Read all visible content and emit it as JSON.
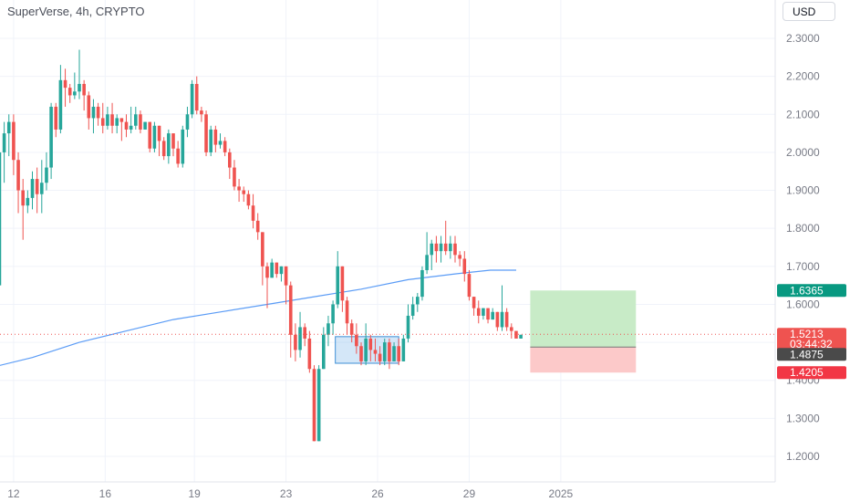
{
  "header": {
    "title": "SuperVerse, 4h, CRYPTO",
    "currency": "USD"
  },
  "colors": {
    "up": "#26a69a",
    "down": "#ef5350",
    "ma": "#5b9cf6",
    "target_zone": "#c8ebc7",
    "stop_zone": "#fcc9c9",
    "target_tag": "#089981",
    "stop_tag": "#f23645",
    "price_tag": "#ef5350",
    "entry_tag": "#4a4a4a"
  },
  "chart_data": {
    "type": "candlestick",
    "title": "SuperVerse, 4h, CRYPTO",
    "y_ticks": [
      "2.3000",
      "2.2000",
      "2.1000",
      "2.0000",
      "1.9000",
      "1.8000",
      "1.7000",
      "1.6000",
      "1.5000",
      "1.4000",
      "1.3000",
      "1.2000"
    ],
    "ylim": [
      1.17,
      2.34
    ],
    "x_ticks": [
      "12",
      "16",
      "19",
      "23",
      "26",
      "29",
      "2025"
    ],
    "x_tick_index": [
      12,
      51,
      89,
      128,
      167,
      206,
      245
    ],
    "candles": [
      [
        1.65,
        2.0,
        1.64,
        2.03
      ],
      [
        2.0,
        2.05,
        1.92,
        2.08
      ],
      [
        2.05,
        2.08,
        1.99,
        2.1
      ],
      [
        2.08,
        1.98,
        1.94,
        2.1
      ],
      [
        1.98,
        1.9,
        1.84,
        2.0
      ],
      [
        1.9,
        1.86,
        1.77,
        1.93
      ],
      [
        1.86,
        1.88,
        1.84,
        1.9
      ],
      [
        1.88,
        1.93,
        1.85,
        1.95
      ],
      [
        1.93,
        1.89,
        1.84,
        1.96
      ],
      [
        1.89,
        1.92,
        1.84,
        1.98
      ],
      [
        1.92,
        1.96,
        1.9,
        2.0
      ],
      [
        1.96,
        2.12,
        1.93,
        2.13
      ],
      [
        2.12,
        2.06,
        2.04,
        2.13
      ],
      [
        2.06,
        2.19,
        2.05,
        2.23
      ],
      [
        2.19,
        2.17,
        2.12,
        2.22
      ],
      [
        2.17,
        2.15,
        2.13,
        2.18
      ],
      [
        2.15,
        2.16,
        2.14,
        2.21
      ],
      [
        2.16,
        2.18,
        2.14,
        2.27
      ],
      [
        2.18,
        2.15,
        2.11,
        2.19
      ],
      [
        2.15,
        2.09,
        2.06,
        2.16
      ],
      [
        2.09,
        2.12,
        2.05,
        2.14
      ],
      [
        2.12,
        2.09,
        2.07,
        2.13
      ],
      [
        2.09,
        2.07,
        2.05,
        2.13
      ],
      [
        2.07,
        2.1,
        2.06,
        2.12
      ],
      [
        2.1,
        2.07,
        2.05,
        2.13
      ],
      [
        2.07,
        2.09,
        2.05,
        2.1
      ],
      [
        2.09,
        2.08,
        2.03,
        2.09
      ],
      [
        2.08,
        2.06,
        2.04,
        2.1
      ],
      [
        2.06,
        2.07,
        2.05,
        2.12
      ],
      [
        2.07,
        2.1,
        2.06,
        2.12
      ],
      [
        2.1,
        2.06,
        2.05,
        2.11
      ],
      [
        2.06,
        2.08,
        2.06,
        2.08
      ],
      [
        2.08,
        2.01,
        2.0,
        2.08
      ],
      [
        2.01,
        2.07,
        2.0,
        2.08
      ],
      [
        2.07,
        2.03,
        1.99,
        2.07
      ],
      [
        2.03,
        1.99,
        1.98,
        2.04
      ],
      [
        1.99,
        2.05,
        1.97,
        2.06
      ],
      [
        2.05,
        2.01,
        1.99,
        2.05
      ],
      [
        2.01,
        1.97,
        1.96,
        2.03
      ],
      [
        1.97,
        2.06,
        1.96,
        2.07
      ],
      [
        2.06,
        2.1,
        2.04,
        2.12
      ],
      [
        2.1,
        2.18,
        2.09,
        2.19
      ],
      [
        2.18,
        2.11,
        2.1,
        2.2
      ],
      [
        2.11,
        2.1,
        2.08,
        2.12
      ],
      [
        2.1,
        2.0,
        1.99,
        2.11
      ],
      [
        2.0,
        2.06,
        1.99,
        2.07
      ],
      [
        2.06,
        2.02,
        2.0,
        2.07
      ],
      [
        2.02,
        2.03,
        2.01,
        2.05
      ],
      [
        2.03,
        2.0,
        1.99,
        2.04
      ],
      [
        2.0,
        1.96,
        1.93,
        2.01
      ],
      [
        1.96,
        1.91,
        1.9,
        1.98
      ],
      [
        1.91,
        1.9,
        1.87,
        1.93
      ],
      [
        1.9,
        1.89,
        1.87,
        1.91
      ],
      [
        1.89,
        1.86,
        1.85,
        1.9
      ],
      [
        1.86,
        1.82,
        1.8,
        1.89
      ],
      [
        1.82,
        1.79,
        1.77,
        1.84
      ],
      [
        1.79,
        1.7,
        1.65,
        1.79
      ],
      [
        1.7,
        1.67,
        1.59,
        1.71
      ],
      [
        1.67,
        1.71,
        1.67,
        1.72
      ],
      [
        1.71,
        1.68,
        1.67,
        1.71
      ],
      [
        1.68,
        1.7,
        1.66,
        1.7
      ],
      [
        1.7,
        1.65,
        1.6,
        1.7
      ],
      [
        1.65,
        1.52,
        1.46,
        1.66
      ],
      [
        1.52,
        1.48,
        1.45,
        1.55
      ],
      [
        1.48,
        1.54,
        1.46,
        1.58
      ],
      [
        1.54,
        1.51,
        1.49,
        1.55
      ],
      [
        1.51,
        1.43,
        1.42,
        1.53
      ],
      [
        1.43,
        1.24,
        1.24,
        1.44
      ],
      [
        1.24,
        1.43,
        1.24,
        1.44
      ],
      [
        1.43,
        1.52,
        1.43,
        1.54
      ],
      [
        1.52,
        1.55,
        1.49,
        1.57
      ],
      [
        1.55,
        1.6,
        1.52,
        1.61
      ],
      [
        1.6,
        1.7,
        1.59,
        1.74
      ],
      [
        1.7,
        1.61,
        1.58,
        1.7
      ],
      [
        1.61,
        1.55,
        1.52,
        1.62
      ],
      [
        1.55,
        1.52,
        1.5,
        1.56
      ],
      [
        1.52,
        1.49,
        1.47,
        1.55
      ],
      [
        1.49,
        1.45,
        1.44,
        1.5
      ],
      [
        1.45,
        1.51,
        1.44,
        1.55
      ],
      [
        1.51,
        1.48,
        1.45,
        1.52
      ],
      [
        1.48,
        1.47,
        1.45,
        1.51
      ],
      [
        1.47,
        1.45,
        1.44,
        1.49
      ],
      [
        1.45,
        1.5,
        1.44,
        1.51
      ],
      [
        1.5,
        1.45,
        1.43,
        1.51
      ],
      [
        1.45,
        1.49,
        1.45,
        1.5
      ],
      [
        1.49,
        1.45,
        1.44,
        1.51
      ],
      [
        1.45,
        1.51,
        1.45,
        1.52
      ],
      [
        1.51,
        1.57,
        1.5,
        1.6
      ],
      [
        1.57,
        1.6,
        1.56,
        1.62
      ],
      [
        1.6,
        1.62,
        1.58,
        1.63
      ],
      [
        1.62,
        1.69,
        1.61,
        1.7
      ],
      [
        1.69,
        1.73,
        1.68,
        1.79
      ],
      [
        1.73,
        1.76,
        1.69,
        1.77
      ],
      [
        1.76,
        1.74,
        1.71,
        1.78
      ],
      [
        1.74,
        1.76,
        1.71,
        1.78
      ],
      [
        1.76,
        1.74,
        1.73,
        1.82
      ],
      [
        1.74,
        1.76,
        1.72,
        1.78
      ],
      [
        1.76,
        1.73,
        1.71,
        1.78
      ],
      [
        1.73,
        1.72,
        1.7,
        1.74
      ],
      [
        1.72,
        1.68,
        1.66,
        1.74
      ],
      [
        1.68,
        1.62,
        1.61,
        1.69
      ],
      [
        1.62,
        1.59,
        1.57,
        1.62
      ],
      [
        1.59,
        1.57,
        1.55,
        1.61
      ],
      [
        1.57,
        1.59,
        1.56,
        1.59
      ],
      [
        1.59,
        1.56,
        1.55,
        1.59
      ],
      [
        1.56,
        1.58,
        1.56,
        1.59
      ],
      [
        1.58,
        1.54,
        1.53,
        1.58
      ],
      [
        1.54,
        1.58,
        1.53,
        1.65
      ],
      [
        1.58,
        1.54,
        1.53,
        1.59
      ],
      [
        1.54,
        1.53,
        1.51,
        1.55
      ],
      [
        1.53,
        1.51,
        1.51,
        1.53
      ],
      [
        1.51,
        1.52,
        1.51,
        1.52
      ]
    ],
    "moving_average": {
      "start_index": 0,
      "end_index": 226,
      "points": [
        [
          0,
          1.43
        ],
        [
          20,
          1.46
        ],
        [
          40,
          1.5
        ],
        [
          60,
          1.53
        ],
        [
          80,
          1.56
        ],
        [
          100,
          1.58
        ],
        [
          120,
          1.6
        ],
        [
          140,
          1.62
        ],
        [
          160,
          1.64
        ],
        [
          180,
          1.665
        ],
        [
          200,
          1.68
        ],
        [
          215,
          1.69
        ],
        [
          226,
          1.69
        ]
      ]
    },
    "position": {
      "entry": 1.4875,
      "target": 1.6365,
      "stop": 1.4205,
      "start_index": 232,
      "end_index": 277
    },
    "current_price": {
      "value": 1.5213,
      "label": "1.5213",
      "countdown": "03:44:32"
    },
    "labels": {
      "target": "1.6365",
      "entry": "1.4875",
      "stop": "1.4205"
    },
    "highlight_box": {
      "x0_index": 149,
      "x1_index": 176,
      "ymin": 1.445,
      "ymax": 1.515
    }
  }
}
